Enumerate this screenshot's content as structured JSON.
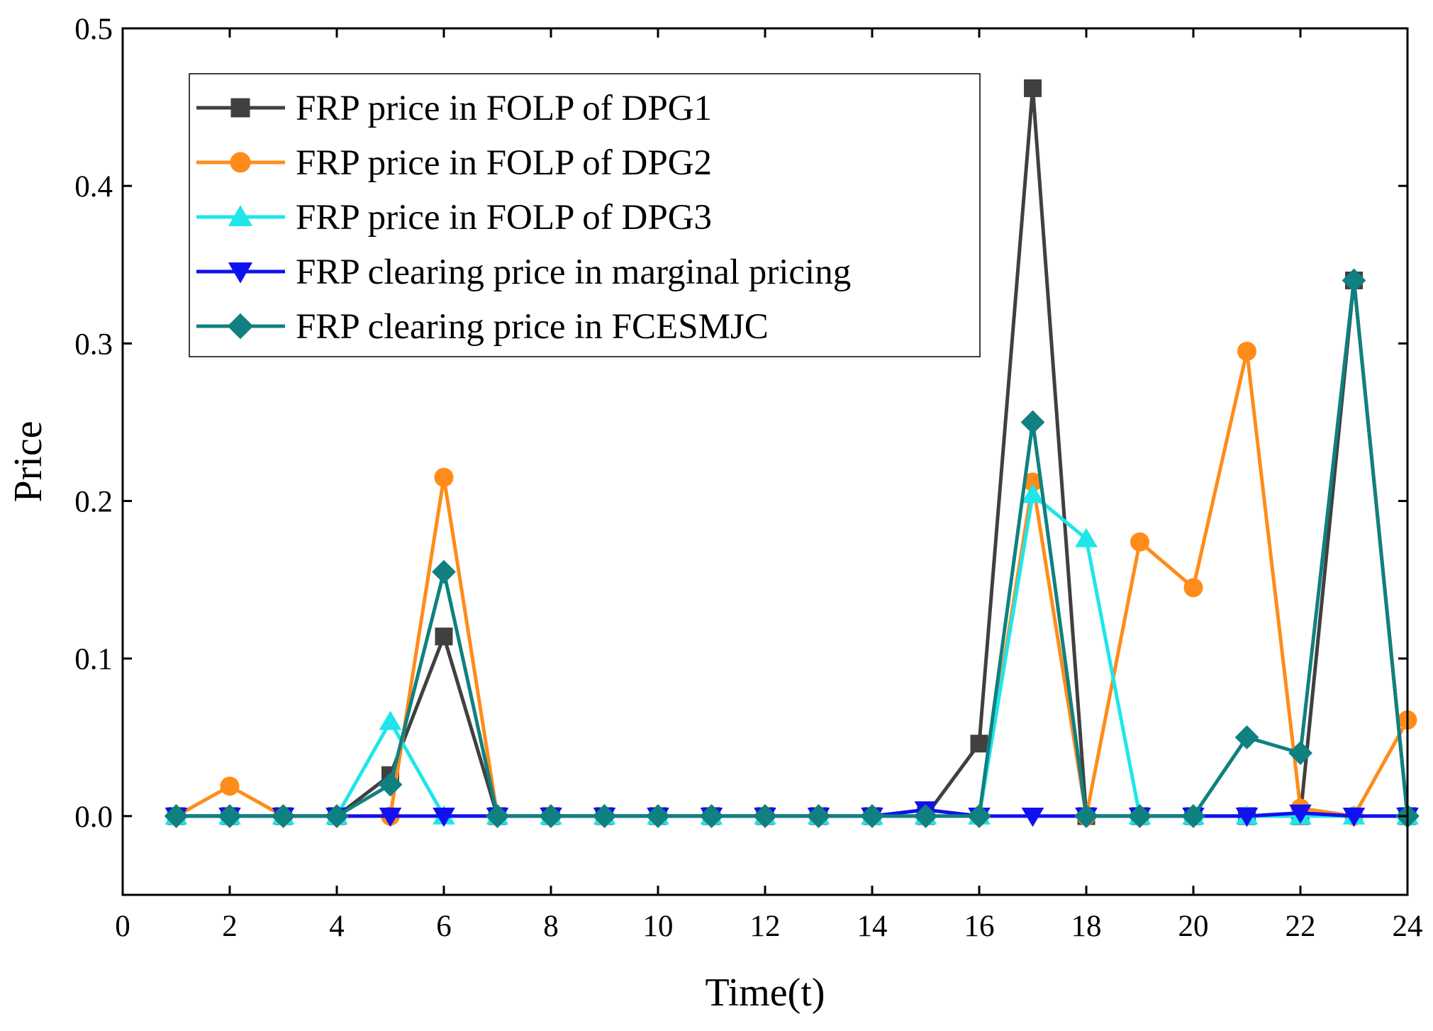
{
  "chart_data": {
    "type": "line",
    "title": "",
    "xlabel": "Time(t)",
    "ylabel": "Price",
    "xlim": [
      0,
      24
    ],
    "ylim": [
      -0.05,
      0.5
    ],
    "xticks": [
      0,
      2,
      4,
      6,
      8,
      10,
      12,
      14,
      16,
      18,
      20,
      22,
      24
    ],
    "xtick_labels": [
      "0",
      "2",
      "4",
      "6",
      "8",
      "10",
      "12",
      "14",
      "16",
      "18",
      "20",
      "22",
      "24"
    ],
    "yticks": [
      0.0,
      0.1,
      0.2,
      0.3,
      0.4,
      0.5
    ],
    "ytick_labels": [
      "0.0",
      "0.1",
      "0.2",
      "0.3",
      "0.4",
      "0.5"
    ],
    "grid": false,
    "legend_position": "top-left",
    "x": [
      1,
      2,
      3,
      4,
      5,
      6,
      7,
      8,
      9,
      10,
      11,
      12,
      13,
      14,
      15,
      16,
      17,
      18,
      19,
      20,
      21,
      22,
      23,
      24
    ],
    "series": [
      {
        "name": "FRP price in FOLP of DPG1",
        "color": "#404040",
        "marker": "square",
        "values": [
          0,
          0,
          0,
          0,
          0.026,
          0.114,
          0,
          0,
          0,
          0,
          0,
          0,
          0,
          0,
          0,
          0.046,
          0.462,
          0,
          0,
          0,
          0,
          0,
          0.34,
          0
        ]
      },
      {
        "name": "FRP price in FOLP of DPG2",
        "color": "#ff8c1a",
        "marker": "circle",
        "values": [
          0,
          0.019,
          0,
          0,
          0,
          0.215,
          0,
          0,
          0,
          0,
          0,
          0,
          0,
          0,
          0,
          0,
          0.212,
          0,
          0.174,
          0.145,
          0.295,
          0.005,
          0,
          0.061
        ]
      },
      {
        "name": "FRP price in FOLP of DPG3",
        "color": "#1ee6ea",
        "marker": "triangle-up",
        "values": [
          0,
          0,
          0,
          0,
          0.06,
          0,
          0,
          0,
          0,
          0,
          0,
          0,
          0,
          0,
          0,
          0,
          0.204,
          0.176,
          0,
          0,
          0,
          0,
          0,
          0
        ]
      },
      {
        "name": "FRP clearing price in marginal pricing",
        "color": "#1010f0",
        "marker": "triangle-down",
        "values": [
          0,
          0,
          0,
          0,
          0,
          0,
          0,
          0,
          0,
          0,
          0,
          0,
          0,
          0,
          0.004,
          0,
          0,
          0,
          0,
          0,
          0,
          0.002,
          0,
          0
        ]
      },
      {
        "name": "FRP clearing price in FCESMJC",
        "color": "#108080",
        "marker": "diamond",
        "values": [
          0,
          0,
          0,
          0,
          0.02,
          0.155,
          0,
          0,
          0,
          0,
          0,
          0,
          0,
          0,
          0,
          0,
          0.25,
          0,
          0,
          0,
          0.05,
          0.04,
          0.34,
          0
        ]
      }
    ]
  }
}
